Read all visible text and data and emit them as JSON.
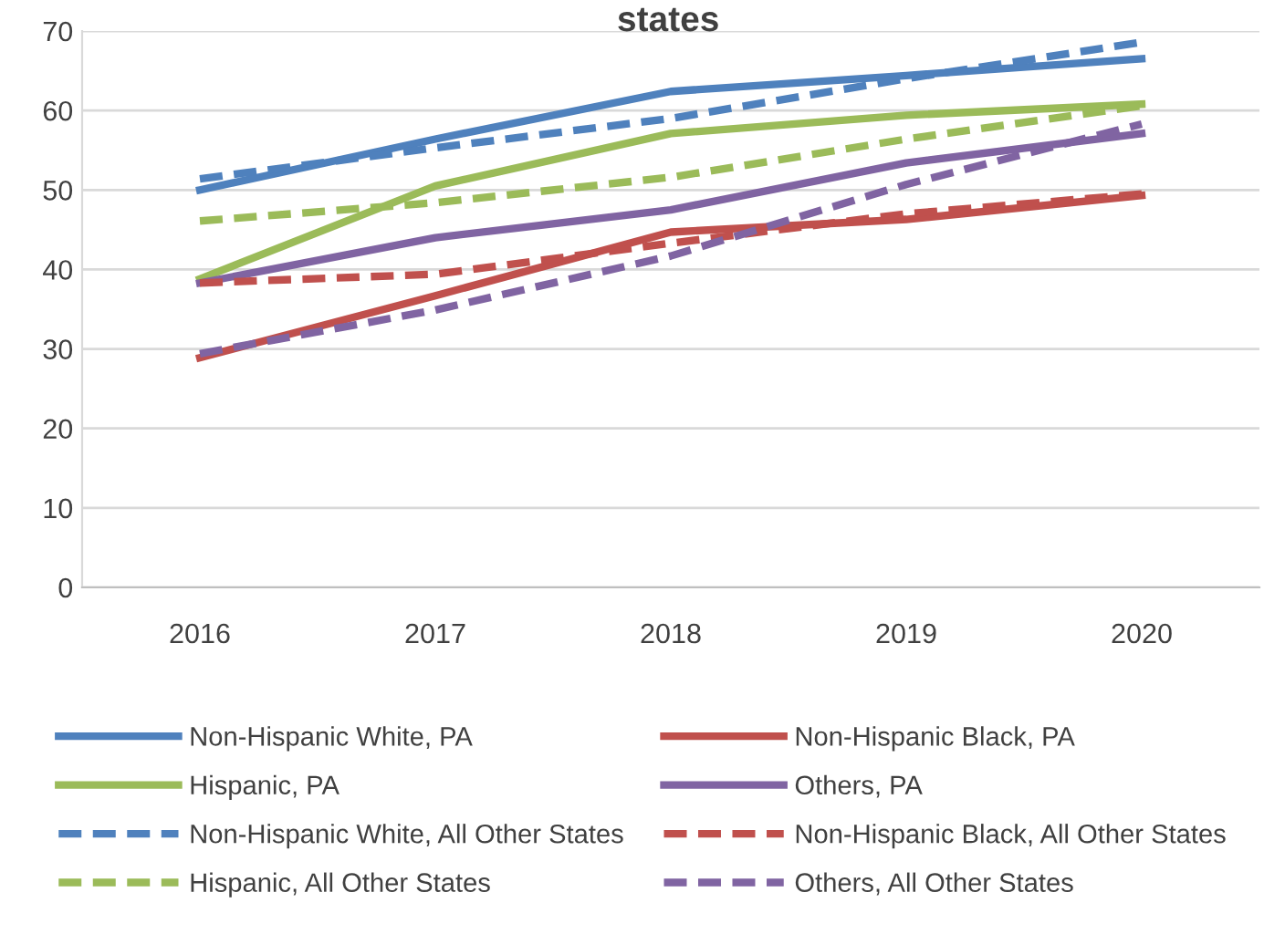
{
  "chart_data": {
    "type": "line",
    "title": "states",
    "categories": [
      "2016",
      "2017",
      "2018",
      "2019",
      "2020"
    ],
    "ylim": [
      0,
      70
    ],
    "yticks": [
      0,
      10,
      20,
      30,
      40,
      50,
      60,
      70
    ],
    "grid": "y",
    "legend": "bottom",
    "marker": "none",
    "series": [
      {
        "name": "Non-Hispanic White, PA",
        "color": "#4f81bd",
        "line_style": "solid",
        "values": [
          50.0,
          56.4,
          62.4,
          64.4,
          66.5
        ]
      },
      {
        "name": "Non-Hispanic Black, PA",
        "color": "#c0504d",
        "line_style": "solid",
        "values": [
          28.9,
          36.7,
          44.7,
          46.3,
          49.3
        ]
      },
      {
        "name": "Hispanic, PA",
        "color": "#9bbb59",
        "line_style": "solid",
        "values": [
          38.8,
          50.5,
          57.1,
          59.4,
          60.8
        ]
      },
      {
        "name": "Others, PA",
        "color": "#8064a2",
        "line_style": "solid",
        "values": [
          38.3,
          44.0,
          47.5,
          53.4,
          57.1
        ]
      },
      {
        "name": "Non-Hispanic White, All Other States",
        "color": "#4f81bd",
        "line_style": "dashed",
        "values": [
          51.4,
          55.3,
          59.0,
          64.0,
          68.6
        ]
      },
      {
        "name": "Non-Hispanic Black, All Other States",
        "color": "#c0504d",
        "line_style": "dashed",
        "values": [
          38.3,
          39.4,
          43.3,
          47.0,
          49.5
        ]
      },
      {
        "name": "Hispanic, All Other States",
        "color": "#9bbb59",
        "line_style": "dashed",
        "values": [
          46.1,
          48.4,
          51.6,
          56.4,
          60.6
        ]
      },
      {
        "name": "Others, All Other States",
        "color": "#8064a2",
        "line_style": "dashed",
        "values": [
          29.4,
          34.9,
          41.7,
          50.7,
          58.3
        ]
      }
    ]
  }
}
